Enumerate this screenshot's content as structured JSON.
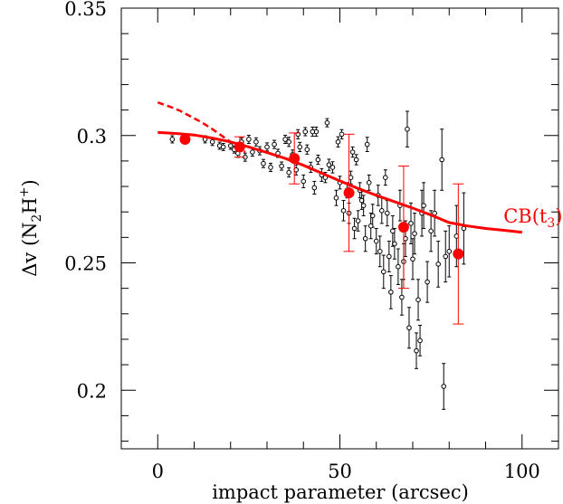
{
  "chart_data": {
    "type": "scatter",
    "xlabel": "impact parameter (arcsec)",
    "ylabel_parts": {
      "prefix": "Δv (N",
      "sub": "2",
      "mid": "H",
      "sup": "+",
      "suffix": ")"
    },
    "xlim": [
      -10,
      110
    ],
    "ylim": [
      0.177,
      0.35
    ],
    "x_ticks": [
      0,
      50,
      100
    ],
    "y_ticks": [
      0.2,
      0.25,
      0.3,
      0.35
    ],
    "x_tick_labels": [
      "0",
      "50",
      "100"
    ],
    "y_tick_labels": [
      "0.2",
      "0.25",
      "0.3",
      "0.35"
    ],
    "grid": false,
    "colors": {
      "data": "#000000",
      "model": "#ff0000"
    },
    "annotation": {
      "text_main": "CB(t",
      "text_sub": "3",
      "text_end": ")",
      "x": 103,
      "y": 0.268
    },
    "series": [
      {
        "kind": "points-with-errors",
        "points": [
          [
            4,
            0.2985,
            0.0014
          ],
          [
            7,
            0.2985,
            0.0014
          ],
          [
            13,
            0.2985,
            0.0014
          ],
          [
            15,
            0.2975,
            0.0014
          ],
          [
            17,
            0.296,
            0.0014
          ],
          [
            18,
            0.2955,
            0.0014
          ],
          [
            20,
            0.296,
            0.0014
          ],
          [
            21,
            0.2945,
            0.0014
          ],
          [
            22,
            0.293,
            0.0016
          ],
          [
            23,
            0.2975,
            0.0016
          ],
          [
            24,
            0.2915,
            0.0016
          ],
          [
            25,
            0.2985,
            0.0016
          ],
          [
            26,
            0.2935,
            0.0016
          ],
          [
            27,
            0.2975,
            0.0016
          ],
          [
            28,
            0.294,
            0.0016
          ],
          [
            29,
            0.289,
            0.0016
          ],
          [
            30,
            0.2955,
            0.0016
          ],
          [
            31,
            0.2875,
            0.0016
          ],
          [
            32,
            0.2965,
            0.0016
          ],
          [
            33,
            0.293,
            0.0016
          ],
          [
            34,
            0.288,
            0.0016
          ],
          [
            35,
            0.2985,
            0.0016
          ],
          [
            36,
            0.2855,
            0.0018
          ],
          [
            37,
            0.2925,
            0.0018
          ],
          [
            38,
            0.2865,
            0.002
          ],
          [
            39,
            0.2955,
            0.0018
          ],
          [
            40,
            0.282,
            0.0025
          ],
          [
            40.5,
            0.3015,
            0.0016
          ],
          [
            41,
            0.2945,
            0.0018
          ],
          [
            42,
            0.2875,
            0.002
          ],
          [
            43,
            0.2795,
            0.0025
          ],
          [
            43.5,
            0.3015,
            0.0018
          ],
          [
            44,
            0.2905,
            0.0018
          ],
          [
            45,
            0.2845,
            0.0025
          ],
          [
            46,
            0.2835,
            0.002
          ],
          [
            46.5,
            0.305,
            0.0016
          ],
          [
            47,
            0.2885,
            0.0022
          ],
          [
            48,
            0.2875,
            0.0022
          ],
          [
            49,
            0.2755,
            0.003
          ],
          [
            50,
            0.2815,
            0.0025
          ],
          [
            50.5,
            0.3005,
            0.0018
          ],
          [
            51,
            0.2705,
            0.004
          ],
          [
            52,
            0.2785,
            0.003
          ],
          [
            53,
            0.2835,
            0.0025
          ],
          [
            54,
            0.2635,
            0.004
          ],
          [
            54.5,
            0.2905,
            0.002
          ],
          [
            55,
            0.2665,
            0.004
          ],
          [
            56,
            0.2745,
            0.0035
          ],
          [
            57,
            0.2595,
            0.005
          ],
          [
            57.5,
            0.2965,
            0.0028
          ],
          [
            58,
            0.2815,
            0.003
          ],
          [
            59,
            0.2685,
            0.0045
          ],
          [
            60,
            0.2585,
            0.005
          ],
          [
            61,
            0.2545,
            0.006
          ],
          [
            62,
            0.2465,
            0.0065
          ],
          [
            62.5,
            0.2835,
            0.003
          ],
          [
            63,
            0.2695,
            0.005
          ],
          [
            64,
            0.2385,
            0.0065
          ],
          [
            65,
            0.2575,
            0.006
          ],
          [
            66,
            0.2485,
            0.007
          ],
          [
            67,
            0.2365,
            0.007
          ],
          [
            68,
            0.2595,
            0.007
          ],
          [
            68.5,
            0.3025,
            0.007
          ],
          [
            69,
            0.2245,
            0.008
          ],
          [
            70,
            0.2515,
            0.008
          ],
          [
            71,
            0.2155,
            0.007
          ],
          [
            72,
            0.2195,
            0.006
          ],
          [
            72.5,
            0.2695,
            0.009
          ],
          [
            73,
            0.2725,
            0.009
          ],
          [
            75,
            0.2625,
            0.008
          ],
          [
            77,
            0.2495,
            0.009
          ],
          [
            78,
            0.2905,
            0.012
          ],
          [
            78.5,
            0.2015,
            0.009
          ],
          [
            80,
            0.2545,
            0.01
          ],
          [
            82,
            0.2605,
            0.012
          ],
          [
            84,
            0.2635,
            0.014
          ],
          [
            36,
            0.2975,
            0.0018
          ],
          [
            38.5,
            0.3005,
            0.0018
          ],
          [
            42.5,
            0.3015,
            0.0018
          ],
          [
            49.5,
            0.2975,
            0.002
          ],
          [
            52.5,
            0.2695,
            0.004
          ],
          [
            53.5,
            0.2935,
            0.002
          ],
          [
            55.5,
            0.2785,
            0.003
          ],
          [
            56.5,
            0.2725,
            0.004
          ],
          [
            58.5,
            0.2645,
            0.005
          ],
          [
            60.5,
            0.2765,
            0.004
          ],
          [
            61.5,
            0.2705,
            0.005
          ],
          [
            63.5,
            0.2525,
            0.006
          ],
          [
            64.5,
            0.2625,
            0.006
          ],
          [
            66.5,
            0.2725,
            0.006
          ],
          [
            67.5,
            0.2505,
            0.007
          ],
          [
            69.5,
            0.2655,
            0.008
          ],
          [
            70.5,
            0.2615,
            0.008
          ],
          [
            71.5,
            0.2355,
            0.008
          ],
          [
            74,
            0.2425,
            0.008
          ],
          [
            76,
            0.2695,
            0.009
          ],
          [
            79,
            0.2525,
            0.01
          ]
        ]
      },
      {
        "kind": "binned-means",
        "points": [
          [
            7.5,
            0.2985,
            0.0
          ],
          [
            22.5,
            0.2955,
            0.004
          ],
          [
            37.5,
            0.291,
            0.01
          ],
          [
            52.5,
            0.2775,
            0.023
          ],
          [
            67.5,
            0.264,
            0.024
          ],
          [
            82.5,
            0.2535,
            0.0275
          ]
        ]
      },
      {
        "kind": "model-solid",
        "x": [
          0,
          5,
          10,
          15,
          20,
          25,
          30,
          35,
          40,
          45,
          50,
          55,
          60,
          65,
          70,
          75,
          80,
          85,
          90,
          95,
          100
        ],
        "y": [
          0.3012,
          0.3008,
          0.3002,
          0.299,
          0.2975,
          0.2955,
          0.2933,
          0.291,
          0.2883,
          0.2852,
          0.2822,
          0.2792,
          0.2765,
          0.274,
          0.2715,
          0.2688,
          0.2658,
          0.2645,
          0.2635,
          0.2628,
          0.262
        ]
      },
      {
        "kind": "model-dashed",
        "x": [
          0,
          3,
          6,
          9,
          12,
          15,
          18,
          21,
          24
        ],
        "y": [
          0.313,
          0.3115,
          0.3098,
          0.3075,
          0.3052,
          0.3025,
          0.2995,
          0.2965,
          0.2935
        ]
      }
    ]
  }
}
